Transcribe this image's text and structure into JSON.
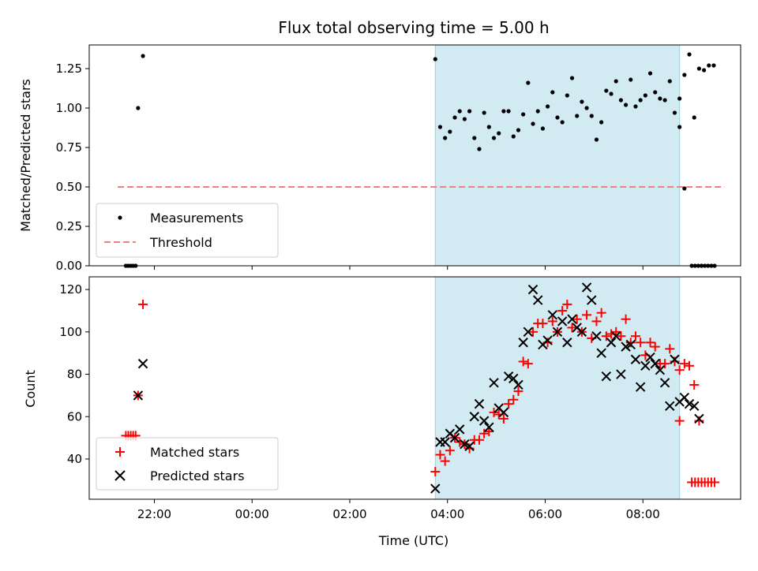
{
  "chart_data": [
    {
      "type": "scatter",
      "panel": "top",
      "title": "Flux total observing time = 5.00 h",
      "ylabel": "Matched/Predicted stars",
      "xlabel": "",
      "ylim": [
        0,
        1.4
      ],
      "yticks": [
        0.0,
        0.25,
        0.5,
        0.75,
        1.0,
        1.25
      ],
      "ytick_labels": [
        "0.00",
        "0.25",
        "0.50",
        "0.75",
        "1.00",
        "1.25"
      ],
      "grid": false,
      "legend_position": "lower-left",
      "shaded_interval": [
        "03:45",
        "08:45"
      ],
      "shaded_color": "#add8e6",
      "series": [
        {
          "name": "Measurements",
          "marker": "dot",
          "color": "#000000",
          "points": [
            [
              "21:25",
              0
            ],
            [
              "21:28",
              0
            ],
            [
              "21:31",
              0
            ],
            [
              "21:34",
              0
            ],
            [
              "21:37",
              0
            ],
            [
              "21:40",
              1.0
            ],
            [
              "21:46",
              1.33
            ],
            [
              "03:45",
              1.31
            ],
            [
              "03:51",
              0.88
            ],
            [
              "03:57",
              0.81
            ],
            [
              "04:03",
              0.85
            ],
            [
              "04:09",
              0.94
            ],
            [
              "04:15",
              0.98
            ],
            [
              "04:21",
              0.93
            ],
            [
              "04:27",
              0.98
            ],
            [
              "04:33",
              0.81
            ],
            [
              "04:39",
              0.74
            ],
            [
              "04:45",
              0.97
            ],
            [
              "04:51",
              0.88
            ],
            [
              "04:57",
              0.81
            ],
            [
              "05:03",
              0.84
            ],
            [
              "05:09",
              0.98
            ],
            [
              "05:15",
              0.98
            ],
            [
              "05:21",
              0.82
            ],
            [
              "05:27",
              0.86
            ],
            [
              "05:33",
              0.96
            ],
            [
              "05:39",
              1.16
            ],
            [
              "05:45",
              0.9
            ],
            [
              "05:51",
              0.98
            ],
            [
              "05:57",
              0.87
            ],
            [
              "06:03",
              1.01
            ],
            [
              "06:09",
              1.1
            ],
            [
              "06:15",
              0.94
            ],
            [
              "06:21",
              0.91
            ],
            [
              "06:27",
              1.08
            ],
            [
              "06:33",
              1.19
            ],
            [
              "06:39",
              0.95
            ],
            [
              "06:45",
              1.04
            ],
            [
              "06:51",
              1.0
            ],
            [
              "06:57",
              0.95
            ],
            [
              "07:03",
              0.8
            ],
            [
              "07:09",
              0.91
            ],
            [
              "07:15",
              1.11
            ],
            [
              "07:21",
              1.09
            ],
            [
              "07:27",
              1.17
            ],
            [
              "07:33",
              1.05
            ],
            [
              "07:39",
              1.02
            ],
            [
              "07:45",
              1.18
            ],
            [
              "07:51",
              1.01
            ],
            [
              "07:57",
              1.05
            ],
            [
              "08:03",
              1.08
            ],
            [
              "08:09",
              1.22
            ],
            [
              "08:15",
              1.1
            ],
            [
              "08:21",
              1.06
            ],
            [
              "08:27",
              1.05
            ],
            [
              "08:33",
              1.17
            ],
            [
              "08:39",
              0.97
            ],
            [
              "08:45",
              1.06
            ],
            [
              "08:51",
              1.21
            ],
            [
              "08:57",
              1.34
            ],
            [
              "09:03",
              0.94
            ],
            [
              "09:09",
              1.25
            ],
            [
              "09:15",
              1.24
            ],
            [
              "09:21",
              1.27
            ],
            [
              "09:27",
              1.27
            ],
            [
              "08:45",
              0.88
            ],
            [
              "08:51",
              0.49
            ],
            [
              "09:00",
              0
            ],
            [
              "09:04",
              0
            ],
            [
              "09:08",
              0
            ],
            [
              "09:12",
              0
            ],
            [
              "09:16",
              0
            ],
            [
              "09:20",
              0
            ],
            [
              "09:24",
              0
            ],
            [
              "09:28",
              0
            ]
          ]
        },
        {
          "name": "Threshold",
          "marker": "dashed-line",
          "color": "#f08080",
          "points": [
            [
              "21:15",
              0.5
            ],
            [
              "09:40",
              0.5
            ]
          ]
        }
      ]
    },
    {
      "type": "scatter",
      "panel": "bottom",
      "xlabel": "Time (UTC)",
      "ylabel": "Count",
      "ylim": [
        21,
        126
      ],
      "yticks": [
        40,
        60,
        80,
        100,
        120
      ],
      "ytick_labels": [
        "40",
        "60",
        "80",
        "100",
        "120"
      ],
      "xlim": [
        "20:40",
        "10:00"
      ],
      "xticks": [
        "22:00",
        "00:00",
        "02:00",
        "04:00",
        "06:00",
        "08:00"
      ],
      "grid": false,
      "legend_position": "lower-left",
      "shaded_interval": [
        "03:45",
        "08:45"
      ],
      "shaded_color": "#add8e6",
      "series": [
        {
          "name": "Matched stars",
          "marker": "plus",
          "color": "#ff0000",
          "points": [
            [
              "21:25",
              51
            ],
            [
              "21:28",
              51
            ],
            [
              "21:31",
              51
            ],
            [
              "21:34",
              51
            ],
            [
              "21:37",
              51
            ],
            [
              "21:40",
              70
            ],
            [
              "21:46",
              113
            ],
            [
              "03:45",
              34
            ],
            [
              "03:51",
              42
            ],
            [
              "03:57",
              39
            ],
            [
              "04:03",
              44
            ],
            [
              "04:09",
              50
            ],
            [
              "04:15",
              48
            ],
            [
              "04:21",
              47
            ],
            [
              "04:27",
              45
            ],
            [
              "04:33",
              49
            ],
            [
              "04:39",
              49
            ],
            [
              "04:45",
              52
            ],
            [
              "04:51",
              53
            ],
            [
              "04:57",
              62
            ],
            [
              "05:03",
              61
            ],
            [
              "05:09",
              59
            ],
            [
              "05:15",
              66
            ],
            [
              "05:21",
              68
            ],
            [
              "05:27",
              72
            ],
            [
              "05:33",
              86
            ],
            [
              "05:39",
              85
            ],
            [
              "05:45",
              100
            ],
            [
              "05:51",
              104
            ],
            [
              "05:57",
              104
            ],
            [
              "06:03",
              95
            ],
            [
              "06:09",
              105
            ],
            [
              "06:15",
              100
            ],
            [
              "06:21",
              110
            ],
            [
              "06:27",
              113
            ],
            [
              "06:33",
              102
            ],
            [
              "06:39",
              106
            ],
            [
              "06:45",
              100
            ],
            [
              "06:51",
              108
            ],
            [
              "06:57",
              97
            ],
            [
              "07:03",
              105
            ],
            [
              "07:09",
              109
            ],
            [
              "07:15",
              98
            ],
            [
              "07:21",
              99
            ],
            [
              "07:27",
              100
            ],
            [
              "07:33",
              98
            ],
            [
              "07:39",
              106
            ],
            [
              "07:45",
              95
            ],
            [
              "07:51",
              98
            ],
            [
              "07:57",
              95
            ],
            [
              "08:03",
              89
            ],
            [
              "08:09",
              95
            ],
            [
              "08:15",
              93
            ],
            [
              "08:21",
              85
            ],
            [
              "08:27",
              85
            ],
            [
              "08:33",
              92
            ],
            [
              "08:39",
              86
            ],
            [
              "08:45",
              82
            ],
            [
              "08:51",
              85
            ],
            [
              "08:57",
              84
            ],
            [
              "09:03",
              75
            ],
            [
              "09:09",
              58
            ],
            [
              "08:45",
              58
            ],
            [
              "09:00",
              29
            ],
            [
              "09:04",
              29
            ],
            [
              "09:08",
              29
            ],
            [
              "09:12",
              29
            ],
            [
              "09:16",
              29
            ],
            [
              "09:20",
              29
            ],
            [
              "09:24",
              29
            ],
            [
              "09:28",
              29
            ]
          ]
        },
        {
          "name": "Predicted stars",
          "marker": "x",
          "color": "#000000",
          "points": [
            [
              "21:40",
              70
            ],
            [
              "21:46",
              85
            ],
            [
              "03:45",
              26
            ],
            [
              "03:51",
              48
            ],
            [
              "03:57",
              48
            ],
            [
              "04:03",
              52
            ],
            [
              "04:09",
              50
            ],
            [
              "04:15",
              54
            ],
            [
              "04:21",
              47
            ],
            [
              "04:27",
              46
            ],
            [
              "04:33",
              60
            ],
            [
              "04:39",
              66
            ],
            [
              "04:45",
              58
            ],
            [
              "04:51",
              55
            ],
            [
              "04:57",
              76
            ],
            [
              "05:03",
              64
            ],
            [
              "05:09",
              62
            ],
            [
              "05:15",
              79
            ],
            [
              "05:21",
              78
            ],
            [
              "05:27",
              75
            ],
            [
              "05:33",
              95
            ],
            [
              "05:39",
              100
            ],
            [
              "05:45",
              120
            ],
            [
              "05:51",
              115
            ],
            [
              "05:57",
              94
            ],
            [
              "06:03",
              96
            ],
            [
              "06:09",
              108
            ],
            [
              "06:15",
              100
            ],
            [
              "06:21",
              105
            ],
            [
              "06:27",
              95
            ],
            [
              "06:33",
              106
            ],
            [
              "06:39",
              102
            ],
            [
              "06:45",
              100
            ],
            [
              "06:51",
              121
            ],
            [
              "06:57",
              115
            ],
            [
              "07:03",
              98
            ],
            [
              "07:09",
              90
            ],
            [
              "07:15",
              79
            ],
            [
              "07:21",
              95
            ],
            [
              "07:27",
              98
            ],
            [
              "07:33",
              80
            ],
            [
              "07:39",
              93
            ],
            [
              "07:45",
              94
            ],
            [
              "07:51",
              87
            ],
            [
              "07:57",
              74
            ],
            [
              "08:03",
              84
            ],
            [
              "08:09",
              88
            ],
            [
              "08:15",
              85
            ],
            [
              "08:21",
              82
            ],
            [
              "08:27",
              76
            ],
            [
              "08:33",
              65
            ],
            [
              "08:39",
              87
            ],
            [
              "08:45",
              67
            ],
            [
              "08:51",
              69
            ],
            [
              "08:57",
              66
            ],
            [
              "09:03",
              65
            ],
            [
              "09:09",
              59
            ]
          ]
        }
      ]
    }
  ]
}
